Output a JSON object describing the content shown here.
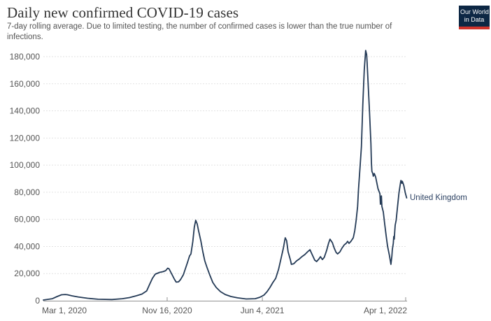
{
  "header": {
    "title": "Daily new confirmed COVID-19 cases",
    "subtitle": "7-day rolling average. Due to limited testing, the number of confirmed cases is lower than the true number of infections."
  },
  "logo": {
    "line1": "Our World",
    "line2": "in Data"
  },
  "entity_label": "United Kingdom",
  "colors": {
    "line": "#243a56",
    "entity_label": "#2d4263",
    "gridline": "#e2e2e2",
    "axis_line": "#919191",
    "tick_text": "#565656",
    "logo_bg": "#0d2744",
    "logo_red": "#d0342c"
  },
  "chart_data": {
    "type": "line",
    "title": "Daily new confirmed COVID-19 cases",
    "subtitle": "7-day rolling average. Due to limited testing, the number of confirmed cases is lower than the true number of infections.",
    "xlabel": "",
    "ylabel": "",
    "grid": "horizontal-dashed",
    "legend_position": "end-of-line-label",
    "x_unit": "days since 2020-03-01",
    "xlim_days": [
      0,
      764
    ],
    "ylim": [
      0,
      187000
    ],
    "x_ticks": [
      {
        "day": 0,
        "label": "Mar 1, 2020",
        "align": "start"
      },
      {
        "day": 260,
        "label": "Nov 16, 2020",
        "align": "middle"
      },
      {
        "day": 460,
        "label": "Jun 4, 2021",
        "align": "middle"
      },
      {
        "day": 761,
        "label": "Apr 1, 2022",
        "align": "end"
      }
    ],
    "y_ticks": [
      {
        "value": 0,
        "label": "0"
      },
      {
        "value": 20000,
        "label": "20,000"
      },
      {
        "value": 40000,
        "label": "40,000"
      },
      {
        "value": 60000,
        "label": "60,000"
      },
      {
        "value": 80000,
        "label": "80,000"
      },
      {
        "value": 100000,
        "label": "100,000"
      },
      {
        "value": 120000,
        "label": "120,000"
      },
      {
        "value": 140000,
        "label": "140,000"
      },
      {
        "value": 160000,
        "label": "160,000"
      },
      {
        "value": 180000,
        "label": "180,000"
      }
    ],
    "series": [
      {
        "name": "United Kingdom",
        "color": "#243a56",
        "points_day_value": [
          [
            0,
            500
          ],
          [
            19,
            1500
          ],
          [
            29,
            3100
          ],
          [
            38,
            4400
          ],
          [
            46,
            4600
          ],
          [
            51,
            4400
          ],
          [
            60,
            3600
          ],
          [
            73,
            2800
          ],
          [
            93,
            1800
          ],
          [
            115,
            1100
          ],
          [
            144,
            900
          ],
          [
            166,
            1500
          ],
          [
            181,
            2300
          ],
          [
            195,
            3600
          ],
          [
            207,
            4900
          ],
          [
            217,
            7200
          ],
          [
            223,
            11900
          ],
          [
            229,
            16500
          ],
          [
            235,
            19600
          ],
          [
            244,
            20900
          ],
          [
            251,
            21400
          ],
          [
            257,
            22200
          ],
          [
            261,
            24000
          ],
          [
            264,
            23500
          ],
          [
            269,
            20100
          ],
          [
            275,
            16000
          ],
          [
            279,
            13700
          ],
          [
            284,
            13900
          ],
          [
            288,
            15500
          ],
          [
            294,
            19100
          ],
          [
            298,
            23200
          ],
          [
            303,
            28400
          ],
          [
            307,
            33000
          ],
          [
            310,
            34500
          ],
          [
            314,
            43800
          ],
          [
            317,
            54200
          ],
          [
            320,
            59300
          ],
          [
            323,
            56700
          ],
          [
            326,
            51600
          ],
          [
            331,
            43800
          ],
          [
            335,
            36100
          ],
          [
            339,
            29400
          ],
          [
            344,
            24200
          ],
          [
            350,
            18600
          ],
          [
            356,
            13400
          ],
          [
            363,
            9800
          ],
          [
            372,
            6700
          ],
          [
            382,
            4600
          ],
          [
            394,
            3100
          ],
          [
            408,
            2100
          ],
          [
            426,
            1300
          ],
          [
            445,
            1500
          ],
          [
            455,
            2600
          ],
          [
            463,
            4100
          ],
          [
            470,
            6700
          ],
          [
            476,
            9800
          ],
          [
            482,
            13400
          ],
          [
            488,
            16500
          ],
          [
            494,
            23200
          ],
          [
            499,
            30900
          ],
          [
            504,
            38700
          ],
          [
            508,
            46400
          ],
          [
            511,
            44300
          ],
          [
            514,
            36100
          ],
          [
            519,
            29900
          ],
          [
            521,
            26800
          ],
          [
            526,
            27300
          ],
          [
            532,
            29400
          ],
          [
            538,
            30900
          ],
          [
            543,
            32500
          ],
          [
            549,
            34000
          ],
          [
            555,
            36100
          ],
          [
            560,
            37600
          ],
          [
            564,
            34500
          ],
          [
            570,
            29900
          ],
          [
            574,
            28900
          ],
          [
            579,
            30900
          ],
          [
            582,
            32500
          ],
          [
            586,
            30400
          ],
          [
            590,
            32000
          ],
          [
            595,
            37100
          ],
          [
            599,
            42300
          ],
          [
            602,
            45400
          ],
          [
            607,
            42800
          ],
          [
            611,
            38700
          ],
          [
            615,
            35600
          ],
          [
            618,
            34500
          ],
          [
            623,
            36100
          ],
          [
            627,
            38700
          ],
          [
            632,
            41200
          ],
          [
            636,
            42300
          ],
          [
            639,
            43800
          ],
          [
            642,
            42300
          ],
          [
            646,
            43800
          ],
          [
            651,
            46400
          ],
          [
            654,
            51600
          ],
          [
            657,
            59300
          ],
          [
            660,
            69600
          ],
          [
            662,
            82500
          ],
          [
            665,
            98000
          ],
          [
            668,
            113400
          ],
          [
            671,
            144400
          ],
          [
            674,
            170200
          ],
          [
            677,
            184600
          ],
          [
            679,
            181500
          ],
          [
            680,
            175300
          ],
          [
            685,
            139200
          ],
          [
            688,
            116000
          ],
          [
            689,
            102100
          ],
          [
            690,
            95400
          ],
          [
            692,
            93800
          ],
          [
            693,
            91800
          ],
          [
            695,
            93800
          ],
          [
            698,
            91200
          ],
          [
            700,
            87600
          ],
          [
            703,
            82500
          ],
          [
            707,
            78900
          ],
          [
            708,
            71100
          ],
          [
            710,
            77300
          ],
          [
            711,
            69600
          ],
          [
            714,
            65500
          ],
          [
            717,
            56700
          ],
          [
            720,
            47900
          ],
          [
            723,
            40200
          ],
          [
            727,
            33000
          ],
          [
            730,
            26800
          ],
          [
            732,
            33000
          ],
          [
            733,
            37600
          ],
          [
            735,
            42300
          ],
          [
            736,
            47400
          ],
          [
            737,
            45400
          ],
          [
            738,
            50500
          ],
          [
            739,
            55700
          ],
          [
            741,
            59300
          ],
          [
            744,
            69600
          ],
          [
            747,
            79900
          ],
          [
            750,
            86600
          ],
          [
            751,
            88700
          ],
          [
            753,
            86600
          ],
          [
            754,
            88100
          ],
          [
            757,
            85100
          ],
          [
            760,
            79900
          ],
          [
            763,
            75800
          ]
        ]
      }
    ]
  }
}
